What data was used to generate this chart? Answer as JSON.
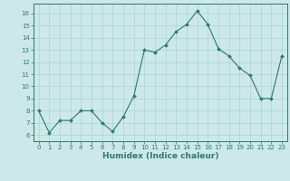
{
  "x": [
    0,
    1,
    2,
    3,
    4,
    5,
    6,
    7,
    8,
    9,
    10,
    11,
    12,
    13,
    14,
    15,
    16,
    17,
    18,
    19,
    20,
    21,
    22,
    23
  ],
  "y": [
    8.0,
    6.2,
    7.2,
    7.2,
    8.0,
    8.0,
    7.0,
    6.3,
    7.5,
    9.2,
    13.0,
    12.8,
    13.4,
    14.5,
    15.1,
    16.2,
    15.1,
    13.1,
    12.5,
    11.5,
    10.9,
    9.0,
    9.0,
    12.5
  ],
  "line_color": "#2d7a6a",
  "marker": "D",
  "marker_size": 2.0,
  "bg_color": "#cce8e8",
  "grid_color": "#aad4d4",
  "xlabel": "Humidex (Indice chaleur)",
  "xlim": [
    -0.5,
    23.5
  ],
  "ylim": [
    5.5,
    16.8
  ],
  "yticks": [
    6,
    7,
    8,
    9,
    10,
    11,
    12,
    13,
    14,
    15,
    16
  ],
  "xticks": [
    0,
    1,
    2,
    3,
    4,
    5,
    6,
    7,
    8,
    9,
    10,
    11,
    12,
    13,
    14,
    15,
    16,
    17,
    18,
    19,
    20,
    21,
    22,
    23
  ],
  "axis_color": "#2d7a6a",
  "label_color": "#2d7a6a",
  "tick_fontsize": 5.0,
  "xlabel_fontsize": 6.5
}
